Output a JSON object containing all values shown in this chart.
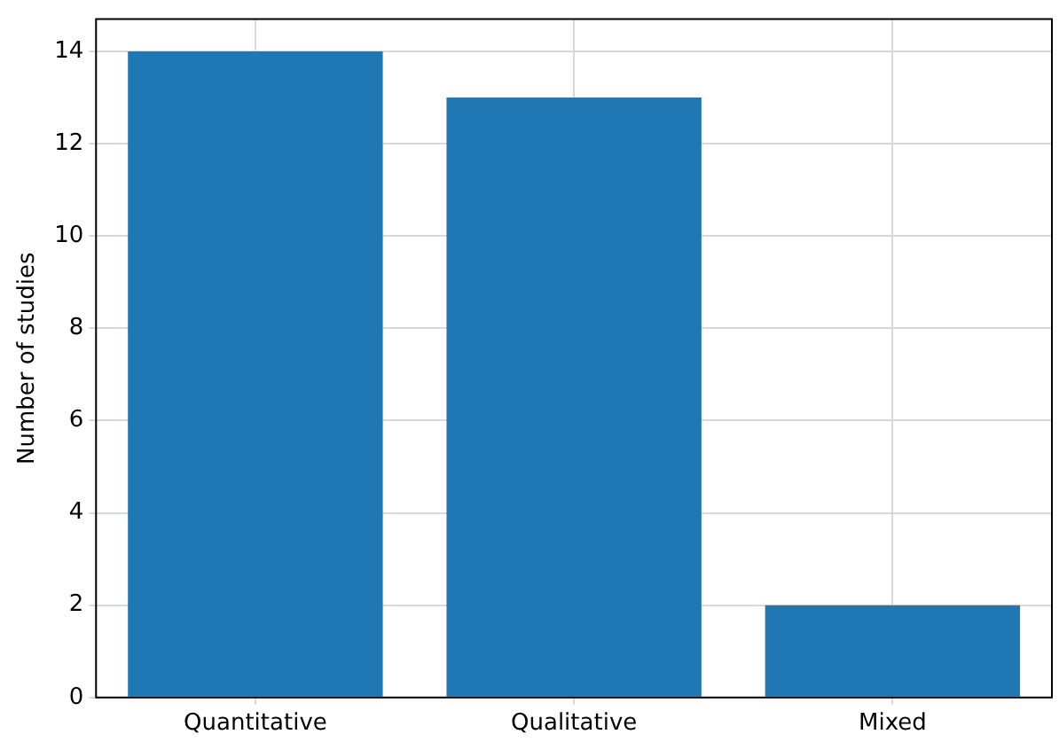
{
  "chart_data": {
    "type": "bar",
    "ylabel": "Number of studies",
    "categories": [
      "Quantitative",
      "Qualitative",
      "Mixed"
    ],
    "values": [
      14,
      13,
      2
    ],
    "color": "#1f77b4",
    "ylim": [
      0,
      14.7
    ],
    "yticks": [
      0,
      2,
      4,
      6,
      8,
      10,
      12,
      14
    ],
    "grid": true
  }
}
